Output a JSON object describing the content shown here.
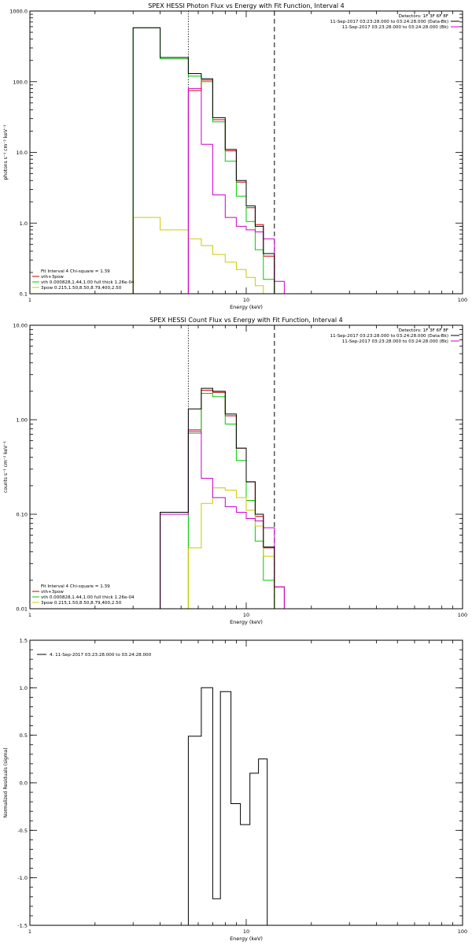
{
  "chart_data": [
    {
      "type": "line",
      "title": "SPEX HESSI Photon Flux vs Energy with Fit Function, Interval 4",
      "xlabel": "Energy (keV)",
      "ylabel": "photons s⁻¹ cm⁻² keV⁻¹",
      "xscale": "log",
      "yscale": "log",
      "xlim": [
        1,
        100
      ],
      "ylim": [
        0.1,
        1000
      ],
      "xticks": [
        {
          "v": 1,
          "label": "1"
        },
        {
          "v": 10,
          "label": "10"
        },
        {
          "v": 100,
          "label": "100"
        }
      ],
      "yticks": [
        {
          "v": 0.1,
          "label": "0.1"
        },
        {
          "v": 1,
          "label": "1.0"
        },
        {
          "v": 10,
          "label": "10.0"
        },
        {
          "v": 100,
          "label": "100.0"
        },
        {
          "v": 1000,
          "label": "1000.0"
        }
      ],
      "vlines": [
        {
          "x": 5.4,
          "style": "dotted"
        },
        {
          "x": 13.5,
          "style": "dashed"
        }
      ],
      "legend_topright": [
        {
          "text": "Detectors: 1F 3F 6F 8F",
          "color": ""
        },
        {
          "text": "11-Sep-2017 03:23:28.000 to 03:24:28.000 (Data-Bk)",
          "color": "#000000"
        },
        {
          "text": "11-Sep-2017 03:23:28.000 to 03:24:28.000 (Bk)",
          "color": "#cc00cc"
        }
      ],
      "legend_bottomleft": [
        {
          "text": "Fit Interval 4   Chi-square = 1.39",
          "color": ""
        },
        {
          "text": "vth+3pow",
          "color": "#cc0000"
        },
        {
          "text": "vth 0.000828,1.44,1.00  full thick 1.26e-04",
          "color": "#00cc00"
        },
        {
          "text": "3pow 0.215,1.50,8.50,8.79,400,2.50",
          "color": "#cccc00"
        }
      ],
      "edges": [
        3.0,
        4.0,
        5.4,
        6.2,
        7.0,
        8.0,
        9.0,
        10.0,
        11.0,
        12.0,
        13.5,
        15.0
      ],
      "series": [
        {
          "name": "vth+3pow",
          "color": "#cc0000",
          "start": 2,
          "values": [
            75,
            105,
            29,
            10.5,
            3.8,
            1.65,
            0.95,
            0.34
          ]
        },
        {
          "name": "",
          "color": "#00cc00",
          "start": 0,
          "values": [
            580,
            210,
            120,
            100,
            27,
            7.5,
            2.4,
            1.05,
            0.42,
            0.16,
            0.1
          ]
        },
        {
          "name": "",
          "color": "#cccc00",
          "start": 0,
          "values": [
            1.2,
            0.8,
            0.6,
            0.48,
            0.36,
            0.28,
            0.22,
            0.17,
            0.13,
            0.1,
            0.1
          ]
        },
        {
          "name": "",
          "color": "#cc00cc",
          "start": 2,
          "values": [
            80,
            13,
            2.5,
            1.2,
            0.9,
            0.8,
            0.75,
            0.6,
            0.15
          ]
        },
        {
          "name": "",
          "color": "#000000",
          "start": 0,
          "values": [
            580,
            220,
            130,
            110,
            31,
            11,
            4,
            1.75,
            0.9,
            0.37,
            0.1
          ]
        }
      ]
    },
    {
      "type": "line",
      "title": "SPEX HESSI Count Flux vs Energy with Fit Function, Interval 4",
      "xlabel": "Energy (keV)",
      "ylabel": "counts s⁻¹ cm⁻² keV⁻¹",
      "xscale": "log",
      "yscale": "log",
      "xlim": [
        1,
        100
      ],
      "ylim": [
        0.01,
        10
      ],
      "xticks": [
        {
          "v": 1,
          "label": "1"
        },
        {
          "v": 10,
          "label": "10"
        },
        {
          "v": 100,
          "label": "100"
        }
      ],
      "yticks": [
        {
          "v": 0.01,
          "label": "0.01"
        },
        {
          "v": 0.1,
          "label": "0.10"
        },
        {
          "v": 1,
          "label": "1.00"
        },
        {
          "v": 10,
          "label": "10.00"
        }
      ],
      "vlines": [
        {
          "x": 5.4,
          "style": "dotted"
        },
        {
          "x": 13.5,
          "style": "dashed"
        }
      ],
      "legend_topright": [
        {
          "text": "Detectors: 1F 3F 6F 8F",
          "color": ""
        },
        {
          "text": "11-Sep-2017 03:23:28.000 to 03:24:28.000 (Data-Bk)",
          "color": "#000000"
        },
        {
          "text": "11-Sep-2017 03:23:28.000 to 03:24:28.000 (Bk)",
          "color": "#cc00cc"
        }
      ],
      "legend_bottomleft": [
        {
          "text": "Fit Interval 4   Chi-square = 1.39",
          "color": ""
        },
        {
          "text": "vth+3pow",
          "color": "#cc0000"
        },
        {
          "text": "vth 0.000828,1.44,1.00  full thick 1.26e-04",
          "color": "#00cc00"
        },
        {
          "text": "3pow 0.215,1.50,8.50,8.79,400,2.50",
          "color": "#cccc00"
        }
      ],
      "edges": [
        3.0,
        4.0,
        5.4,
        6.2,
        7.0,
        8.0,
        9.0,
        10.0,
        11.0,
        12.0,
        13.5,
        15.0
      ],
      "series": [
        {
          "name": "vth+3pow",
          "color": "#cc0000",
          "start": 1,
          "values": [
            0.105,
            0.78,
            2.05,
            1.95,
            1.1,
            0.5,
            0.22,
            0.095,
            0.044,
            0.017
          ]
        },
        {
          "name": "",
          "color": "#00cc00",
          "start": 1,
          "values": [
            0.01,
            0.72,
            1.9,
            1.75,
            0.9,
            0.37,
            0.14,
            0.052,
            0.02,
            0.01
          ]
        },
        {
          "name": "",
          "color": "#cccc00",
          "start": 1,
          "values": [
            0.01,
            0.044,
            0.13,
            0.19,
            0.18,
            0.15,
            0.11,
            0.075,
            0.036,
            0.01
          ]
        },
        {
          "name": "",
          "color": "#cc00cc",
          "start": 1,
          "values": [
            0.1,
            0.75,
            0.24,
            0.15,
            0.12,
            0.105,
            0.09,
            0.085,
            0.072,
            0.017
          ]
        },
        {
          "name": "",
          "color": "#000000",
          "start": 1,
          "values": [
            0.105,
            1.3,
            2.15,
            2.0,
            1.15,
            0.5,
            0.22,
            0.1,
            0.045,
            0.01
          ]
        }
      ]
    },
    {
      "type": "line",
      "title": "",
      "xlabel": "Energy (keV)",
      "ylabel": "Normalized Residuals (sigma)",
      "xscale": "log",
      "yscale": "linear",
      "xlim": [
        1,
        100
      ],
      "ylim": [
        -1.5,
        1.5
      ],
      "xticks": [
        {
          "v": 1,
          "label": "1"
        },
        {
          "v": 10,
          "label": "10"
        },
        {
          "v": 100,
          "label": "100"
        }
      ],
      "yticks": [
        {
          "v": -1.5,
          "label": "-1.5"
        },
        {
          "v": -1.0,
          "label": "-1.0"
        },
        {
          "v": -0.5,
          "label": "-0.5"
        },
        {
          "v": 0.0,
          "label": "0.0"
        },
        {
          "v": 0.5,
          "label": "0.5"
        },
        {
          "v": 1.0,
          "label": "1.0"
        },
        {
          "v": 1.5,
          "label": "1.5"
        }
      ],
      "vlines": [],
      "legend_topright": [],
      "legend_bottomleft": [],
      "legend_topleft": [
        {
          "text": "4. 11-Sep-2017 03:23:28.000 to 03:24:28.000",
          "color": "#000000"
        }
      ],
      "edges": [
        5.4,
        6.2,
        7.0,
        7.6,
        8.5,
        9.4,
        10.4,
        11.4,
        12.5,
        13.5
      ],
      "series": [
        {
          "name": "",
          "color": "#000000",
          "start": 0,
          "values": [
            0.49,
            1.0,
            -1.22,
            0.96,
            -0.22,
            -0.44,
            0.1,
            0.25,
            null
          ]
        }
      ]
    }
  ]
}
